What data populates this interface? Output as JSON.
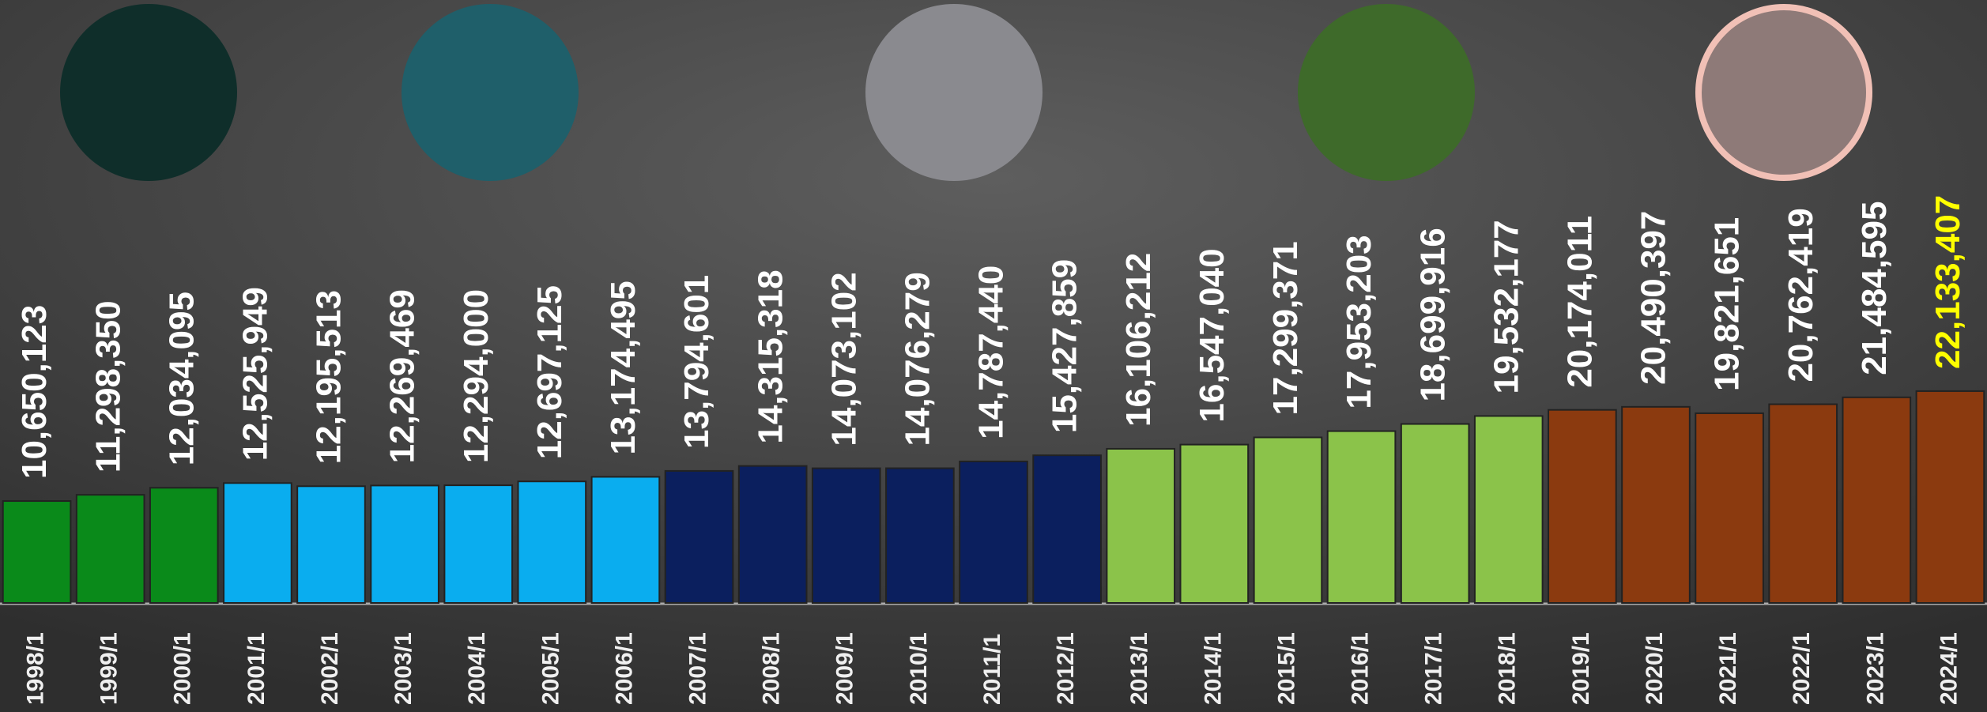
{
  "chart_data": {
    "type": "bar",
    "categories": [
      "1998/1",
      "1999/1",
      "2000/1",
      "2001/1",
      "2002/1",
      "2003/1",
      "2004/1",
      "2005/1",
      "2006/1",
      "2007/1",
      "2008/1",
      "2009/1",
      "2010/1",
      "2011/1",
      "2012/1",
      "2013/1",
      "2014/1",
      "2015/1",
      "2016/1",
      "2017/1",
      "2018/1",
      "2019/1",
      "2020/1",
      "2021/1",
      "2022/1",
      "2023/1",
      "2024/1"
    ],
    "values": [
      10650123,
      11298350,
      12034095,
      12525949,
      12195513,
      12269469,
      12294000,
      12697125,
      13174495,
      13794601,
      14315318,
      14073102,
      14076279,
      14787440,
      15427859,
      16106212,
      16547040,
      17299371,
      17953203,
      18699916,
      19532177,
      20174011,
      20490397,
      19821651,
      20762419,
      21484595,
      22133407
    ],
    "value_labels": [
      "10,650,123",
      "11,298,350",
      "12,034,095",
      "12,525,949",
      "12,195,513",
      "12,269,469",
      "12,294,000",
      "12,697,125",
      "13,174,495",
      "13,794,601",
      "14,315,318",
      "14,073,102",
      "14,076,279",
      "14,787,440",
      "15,427,859",
      "16,106,212",
      "16,547,040",
      "17,299,371",
      "17,953,203",
      "18,699,916",
      "19,532,177",
      "20,174,011",
      "20,490,397",
      "19,821,651",
      "20,762,419",
      "21,484,595",
      "22,133,407"
    ],
    "colors": [
      "#0a8a1a",
      "#0a8a1a",
      "#0a8a1a",
      "#0aadef",
      "#0aadef",
      "#0aadef",
      "#0aadef",
      "#0aadef",
      "#0aadef",
      "#0b1f5e",
      "#0b1f5e",
      "#0b1f5e",
      "#0b1f5e",
      "#0b1f5e",
      "#0b1f5e",
      "#8bc34a",
      "#8bc34a",
      "#8bc34a",
      "#8bc34a",
      "#8bc34a",
      "#8bc34a",
      "#8b3a0f",
      "#8b3a0f",
      "#8b3a0f",
      "#8b3a0f",
      "#8b3a0f",
      "#8b3a0f"
    ],
    "value_label_colors": [
      "#ffffff",
      "#ffffff",
      "#ffffff",
      "#ffffff",
      "#ffffff",
      "#ffffff",
      "#ffffff",
      "#ffffff",
      "#ffffff",
      "#ffffff",
      "#ffffff",
      "#ffffff",
      "#ffffff",
      "#ffffff",
      "#ffffff",
      "#ffffff",
      "#ffffff",
      "#ffffff",
      "#ffffff",
      "#ffffff",
      "#ffffff",
      "#ffffff",
      "#ffffff",
      "#ffffff",
      "#ffffff",
      "#ffffff",
      "#ffff00"
    ],
    "ylim": [
      0,
      63000000
    ]
  }
}
